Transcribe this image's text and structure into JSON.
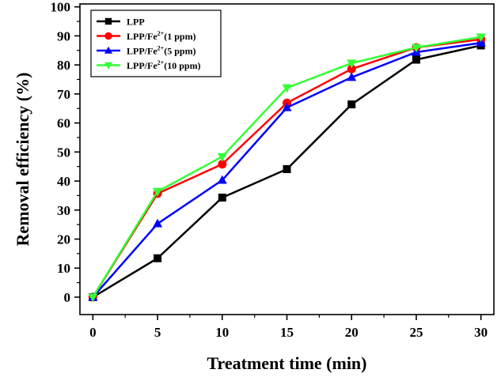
{
  "chart_data": {
    "type": "line",
    "xlabel": "Treatment time (min)",
    "ylabel": "Removal efficiency (%)",
    "xlim": [
      -1,
      31
    ],
    "ylim": [
      -6,
      101
    ],
    "xticks": [
      0,
      5,
      10,
      15,
      20,
      25,
      30
    ],
    "yticks": [
      0,
      10,
      20,
      30,
      40,
      50,
      60,
      70,
      80,
      90,
      100
    ],
    "x": [
      0,
      5,
      10,
      15,
      20,
      25,
      30
    ],
    "grid": false,
    "legend_position": "top-left",
    "series": [
      {
        "name": "LPP",
        "legend": {
          "base": "LPP",
          "sup": "",
          "rest": ""
        },
        "color": "#000000",
        "marker": "square",
        "values": [
          0,
          13.4,
          34.3,
          44.1,
          66.4,
          81.8,
          86.7
        ]
      },
      {
        "name": "LPP/Fe2+(1 ppm)",
        "legend": {
          "base": "LPP/Fe",
          "sup": "2+",
          "rest": "(1 ppm)"
        },
        "color": "#ff0000",
        "marker": "circle",
        "values": [
          0,
          35.7,
          45.8,
          66.9,
          78.6,
          86.0,
          88.8
        ]
      },
      {
        "name": "LPP/Fe2+(5 ppm)",
        "legend": {
          "base": "LPP/Fe",
          "sup": "2+",
          "rest": "(5 ppm)"
        },
        "color": "#0000ff",
        "marker": "triangle-up",
        "values": [
          0,
          25.3,
          40.3,
          65.3,
          75.7,
          84.4,
          87.6
        ]
      },
      {
        "name": "LPP/Fe2+(10 ppm)",
        "legend": {
          "base": "LPP/Fe",
          "sup": "2+",
          "rest": "(10 ppm)"
        },
        "color": "#33ff33",
        "marker": "triangle-down",
        "values": [
          0,
          36.4,
          48.4,
          72.1,
          80.6,
          86.0,
          89.6
        ]
      }
    ]
  }
}
